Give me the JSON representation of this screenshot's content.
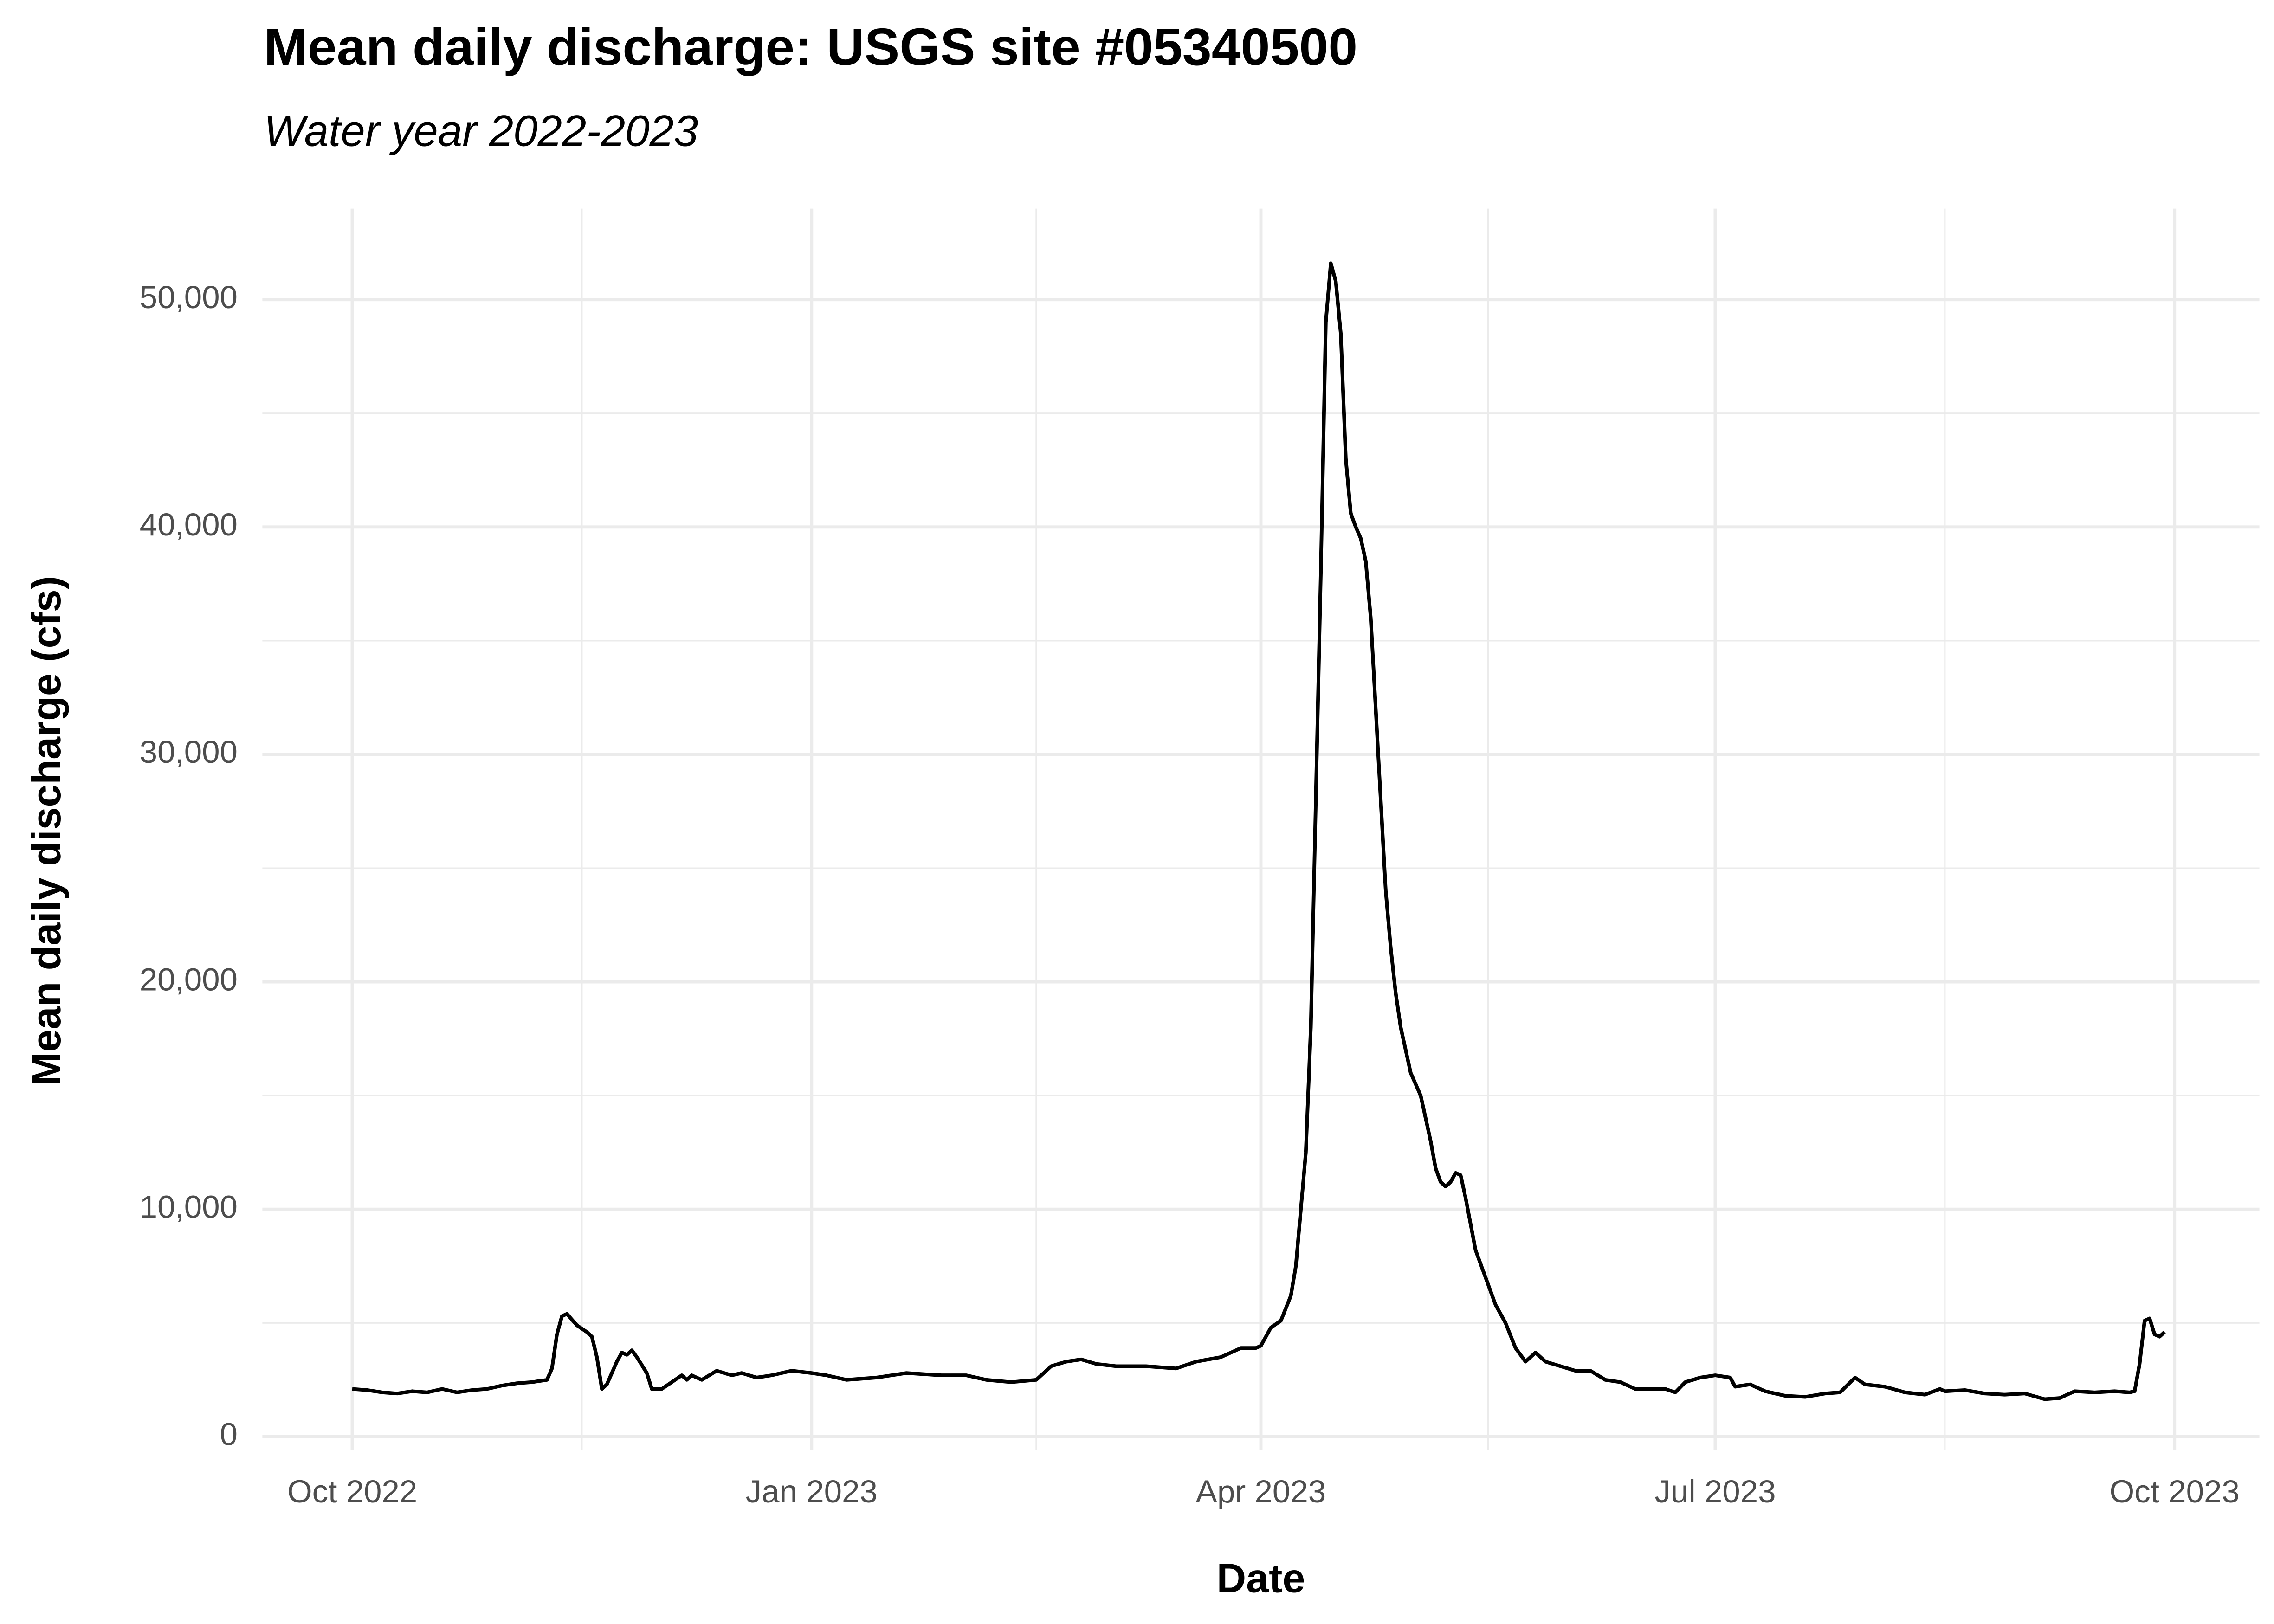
{
  "chart_data": {
    "type": "line",
    "title": "Mean daily discharge: USGS site #05340500",
    "subtitle": "Water year 2022-2023",
    "x_label": "Date",
    "y_label": "Mean daily discharge (cfs)",
    "color": "#000000",
    "grid": true,
    "x": [
      "2022-10-01",
      "2022-10-04",
      "2022-10-07",
      "2022-10-10",
      "2022-10-13",
      "2022-10-16",
      "2022-10-19",
      "2022-10-22",
      "2022-10-25",
      "2022-10-28",
      "2022-10-31",
      "2022-11-03",
      "2022-11-06",
      "2022-11-09",
      "2022-11-10",
      "2022-11-11",
      "2022-11-12",
      "2022-11-13",
      "2022-11-15",
      "2022-11-17",
      "2022-11-18",
      "2022-11-19",
      "2022-11-20",
      "2022-11-21",
      "2022-11-23",
      "2022-11-24",
      "2022-11-25",
      "2022-11-26",
      "2022-11-27",
      "2022-11-29",
      "2022-11-30",
      "2022-12-02",
      "2022-12-04",
      "2022-12-06",
      "2022-12-07",
      "2022-12-08",
      "2022-12-10",
      "2022-12-13",
      "2022-12-16",
      "2022-12-18",
      "2022-12-21",
      "2022-12-24",
      "2022-12-28",
      "2023-01-01",
      "2023-01-04",
      "2023-01-08",
      "2023-01-14",
      "2023-01-20",
      "2023-01-27",
      "2023-02-01",
      "2023-02-05",
      "2023-02-10",
      "2023-02-15",
      "2023-02-18",
      "2023-02-21",
      "2023-02-24",
      "2023-02-27",
      "2023-03-03",
      "2023-03-09",
      "2023-03-15",
      "2023-03-19",
      "2023-03-24",
      "2023-03-28",
      "2023-03-31",
      "2023-04-01",
      "2023-04-03",
      "2023-04-05",
      "2023-04-07",
      "2023-04-08",
      "2023-04-09",
      "2023-04-10",
      "2023-04-11",
      "2023-04-12",
      "2023-04-13",
      "2023-04-14",
      "2023-04-15",
      "2023-04-16",
      "2023-04-17",
      "2023-04-18",
      "2023-04-19",
      "2023-04-20",
      "2023-04-21",
      "2023-04-22",
      "2023-04-23",
      "2023-04-24",
      "2023-04-25",
      "2023-04-26",
      "2023-04-27",
      "2023-04-28",
      "2023-04-29",
      "2023-04-30",
      "2023-05-01",
      "2023-05-03",
      "2023-05-05",
      "2023-05-06",
      "2023-05-07",
      "2023-05-08",
      "2023-05-09",
      "2023-05-10",
      "2023-05-11",
      "2023-05-12",
      "2023-05-14",
      "2023-05-16",
      "2023-05-18",
      "2023-05-20",
      "2023-05-22",
      "2023-05-24",
      "2023-05-26",
      "2023-05-28",
      "2023-05-31",
      "2023-06-03",
      "2023-06-06",
      "2023-06-09",
      "2023-06-12",
      "2023-06-15",
      "2023-06-18",
      "2023-06-21",
      "2023-06-23",
      "2023-06-25",
      "2023-06-28",
      "2023-07-01",
      "2023-07-04",
      "2023-07-05",
      "2023-07-08",
      "2023-07-11",
      "2023-07-15",
      "2023-07-19",
      "2023-07-23",
      "2023-07-26",
      "2023-07-29",
      "2023-07-31",
      "2023-08-04",
      "2023-08-08",
      "2023-08-12",
      "2023-08-15",
      "2023-08-16",
      "2023-08-20",
      "2023-08-24",
      "2023-08-28",
      "2023-09-01",
      "2023-09-05",
      "2023-09-08",
      "2023-09-11",
      "2023-09-15",
      "2023-09-19",
      "2023-09-22",
      "2023-09-23",
      "2023-09-24",
      "2023-09-25",
      "2023-09-26",
      "2023-09-27",
      "2023-09-28",
      "2023-09-29"
    ],
    "values": [
      2100,
      2050,
      1950,
      1900,
      2000,
      1950,
      2100,
      1950,
      2050,
      2100,
      2250,
      2350,
      2400,
      2500,
      3000,
      4500,
      5300,
      5400,
      4900,
      4600,
      4400,
      3500,
      2100,
      2300,
      3300,
      3700,
      3600,
      3800,
      3500,
      2800,
      2100,
      2100,
      2400,
      2700,
      2500,
      2700,
      2500,
      2900,
      2700,
      2800,
      2600,
      2700,
      2900,
      2800,
      2700,
      2500,
      2600,
      2800,
      2700,
      2700,
      2500,
      2400,
      2500,
      3100,
      3300,
      3400,
      3200,
      3100,
      3100,
      3000,
      3300,
      3500,
      3900,
      3900,
      4000,
      4800,
      5100,
      6200,
      7500,
      10000,
      12500,
      18000,
      28000,
      38000,
      49000,
      51600,
      50800,
      48500,
      43000,
      40600,
      40000,
      39500,
      38500,
      36000,
      32000,
      28000,
      24000,
      21500,
      19500,
      18000,
      17000,
      16000,
      15000,
      13000,
      11800,
      11200,
      11000,
      11200,
      11600,
      11500,
      10500,
      8200,
      7000,
      5800,
      5000,
      3900,
      3300,
      3700,
      3300,
      3100,
      2900,
      2900,
      2500,
      2400,
      2100,
      2100,
      2100,
      1950,
      2400,
      2600,
      2700,
      2600,
      2200,
      2300,
      2000,
      1800,
      1750,
      1900,
      1950,
      2600,
      2300,
      2200,
      1950,
      1850,
      2100,
      2000,
      2050,
      1900,
      1850,
      1900,
      1650,
      1700,
      2000,
      1950,
      2000,
      1950,
      2000,
      3200,
      5100,
      5200,
      4500,
      4400,
      4600
    ],
    "xlim": [
      "2022-09-13",
      "2023-10-18"
    ],
    "xticks": [
      {
        "value": "2022-10-01",
        "label": "Oct 2022"
      },
      {
        "value": "2023-01-01",
        "label": "Jan 2023"
      },
      {
        "value": "2023-04-01",
        "label": "Apr 2023"
      },
      {
        "value": "2023-07-01",
        "label": "Jul 2023"
      },
      {
        "value": "2023-10-01",
        "label": "Oct 2023"
      }
    ],
    "ylim": [
      -600,
      54000
    ],
    "yticks": [
      0,
      {
        "value": 10000,
        "label": "10,000"
      },
      {
        "value": 20000,
        "label": "20,000"
      },
      {
        "value": 30000,
        "label": "30,000"
      },
      {
        "value": 40000,
        "label": "40,000"
      },
      {
        "value": 50000,
        "label": "50,000"
      }
    ]
  }
}
